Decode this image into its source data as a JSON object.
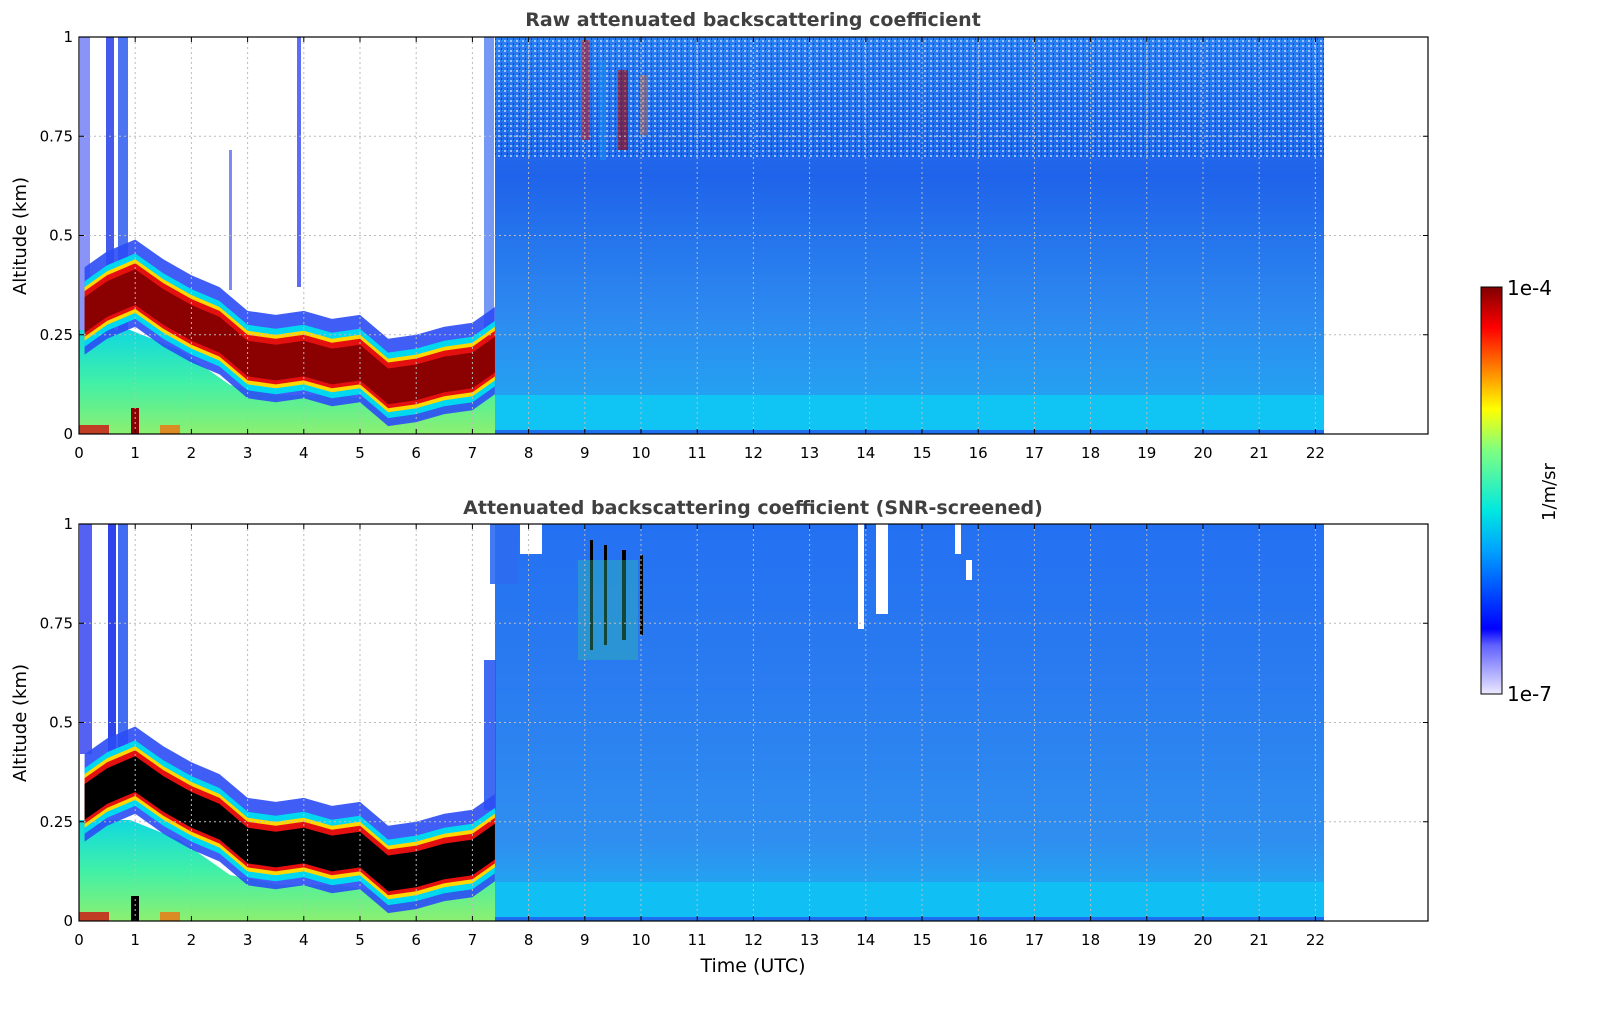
{
  "chart_data": [
    {
      "type": "heatmap",
      "title": "Raw attenuated backscattering coefficient",
      "xlabel": "",
      "ylabel": "Altitude (km)",
      "xlim": [
        0,
        24
      ],
      "ylim": [
        0,
        1
      ],
      "x_ticks": [
        "0",
        "1",
        "2",
        "3",
        "4",
        "5",
        "6",
        "7",
        "8",
        "9",
        "10",
        "11",
        "12",
        "13",
        "14",
        "15",
        "16",
        "17",
        "18",
        "19",
        "20",
        "21",
        "22"
      ],
      "y_ticks": [
        "0",
        "0.25",
        "0.5",
        "0.75",
        "1"
      ],
      "y_tick_values": [
        0,
        0.25,
        0.5,
        0.75,
        1
      ],
      "grid": true,
      "data_end_time": 22.2,
      "color_scale": "log",
      "features": {
        "layer_altitude_km": [
          [
            0.1,
            0.3
          ],
          [
            0.5,
            0.34
          ],
          [
            1.0,
            0.37
          ],
          [
            1.5,
            0.32
          ],
          [
            2.0,
            0.28
          ],
          [
            2.5,
            0.25
          ],
          [
            3.0,
            0.19
          ],
          [
            3.5,
            0.18
          ],
          [
            4.0,
            0.19
          ],
          [
            4.5,
            0.17
          ],
          [
            5.0,
            0.18
          ],
          [
            5.5,
            0.12
          ],
          [
            6.0,
            0.13
          ],
          [
            6.5,
            0.15
          ],
          [
            7.0,
            0.16
          ],
          [
            7.4,
            0.2
          ]
        ],
        "clear_sky_above_layer_until_utc": 7.4,
        "elevated_signal_utc": [
          9.0,
          10.2
        ],
        "elevated_signal_altitude_km": [
          0.7,
          1.0
        ]
      }
    },
    {
      "type": "heatmap",
      "title": "Attenuated backscattering coefficient (SNR-screened)",
      "xlabel": "Time (UTC)",
      "ylabel": "Altitude (km)",
      "xlim": [
        0,
        24
      ],
      "ylim": [
        0,
        1
      ],
      "x_ticks": [
        "0",
        "1",
        "2",
        "3",
        "4",
        "5",
        "6",
        "7",
        "8",
        "9",
        "10",
        "11",
        "12",
        "13",
        "14",
        "15",
        "16",
        "17",
        "18",
        "19",
        "20",
        "21",
        "22"
      ],
      "y_ticks": [
        "0",
        "0.25",
        "0.5",
        "0.75",
        "1"
      ],
      "y_tick_values": [
        0,
        0.25,
        0.5,
        0.75,
        1
      ],
      "grid": true,
      "data_end_time": 22.2,
      "color_scale": "log",
      "saturated_color": "#000000"
    }
  ],
  "colorbar": {
    "label": "1/m/sr",
    "max_label": "1e-4",
    "min_label": "1e-7",
    "min": 1e-07,
    "max": 0.0001,
    "colormap": "jet",
    "colors": [
      "#ece9ff",
      "#0000ff",
      "#00a0ff",
      "#00e8e0",
      "#80ff80",
      "#ffff00",
      "#ff8000",
      "#ff0000",
      "#800000"
    ]
  },
  "colors": {
    "title_color": "#404040",
    "grid_color": "#bbbbbb",
    "background_level": "#1a74f0",
    "layer_core": "#8b0000",
    "saturated": "#000000"
  }
}
